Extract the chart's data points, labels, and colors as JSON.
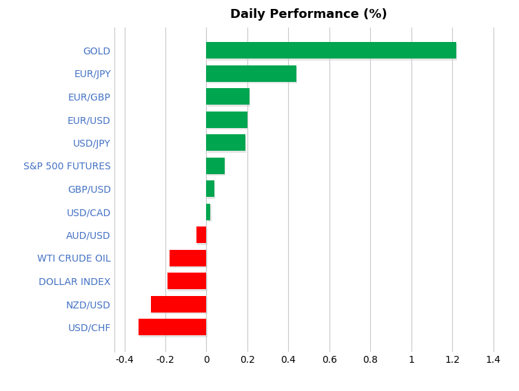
{
  "title": "Daily Performance (%)",
  "categories": [
    "USD/CHF",
    "NZD/USD",
    "DOLLAR INDEX",
    "WTI CRUDE OIL",
    "AUD/USD",
    "USD/CAD",
    "GBP/USD",
    "S&P 500 FUTURES",
    "USD/JPY",
    "EUR/USD",
    "EUR/GBP",
    "EUR/JPY",
    "GOLD"
  ],
  "values": [
    -0.33,
    -0.27,
    -0.19,
    -0.18,
    -0.05,
    0.02,
    0.04,
    0.09,
    0.19,
    0.2,
    0.21,
    0.44,
    1.22
  ],
  "bar_color_positive": "#00A550",
  "bar_color_negative": "#FF0000",
  "xlim": [
    -0.45,
    1.45
  ],
  "xticks": [
    -0.4,
    -0.2,
    0.0,
    0.2,
    0.4,
    0.6,
    0.8,
    1.0,
    1.2,
    1.4
  ],
  "xtick_labels": [
    "-0.4",
    "-0.2",
    "0",
    "0.2",
    "0.4",
    "0.6",
    "0.8",
    "1",
    "1.2",
    "1.4"
  ],
  "background_color": "#FFFFFF",
  "grid_color": "#C8C8C8",
  "label_color": "#4472C4",
  "title_fontsize": 13,
  "tick_fontsize": 10,
  "label_fontsize": 10
}
